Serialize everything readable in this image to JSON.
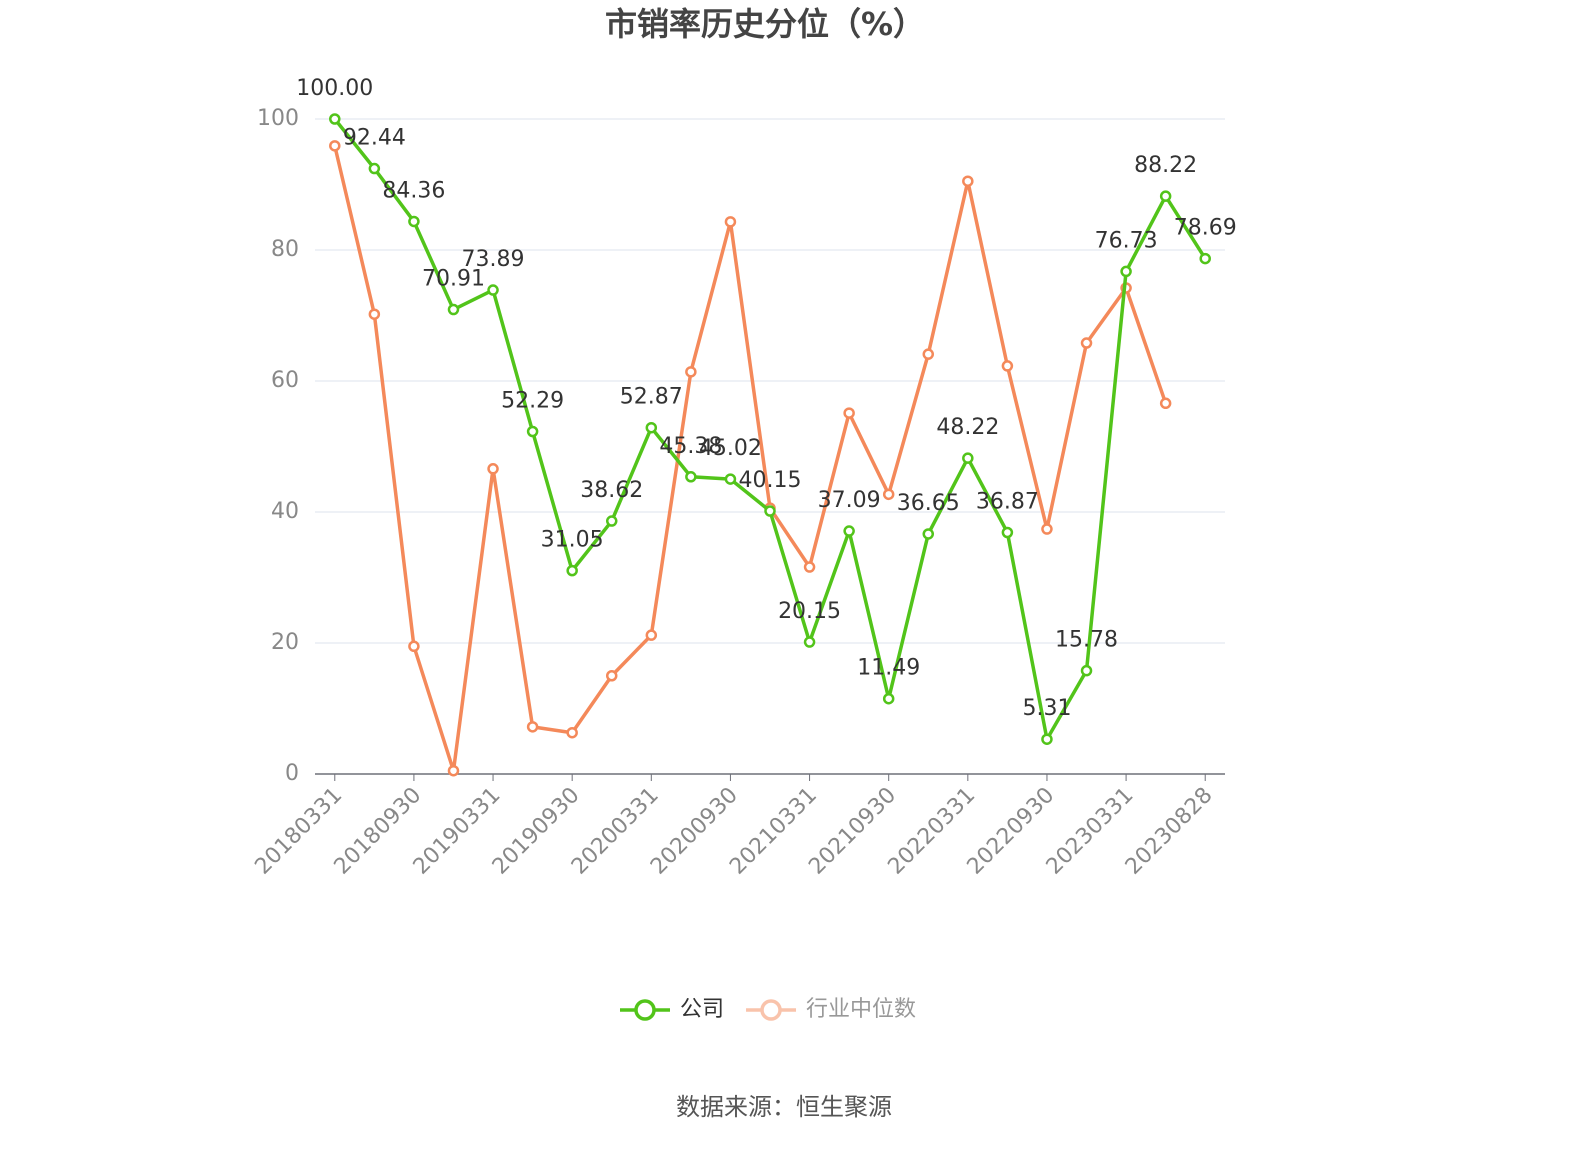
{
  "chart_data": {
    "type": "line",
    "title": "市销率历史分位（%）",
    "categories": [
      "20180331",
      null,
      "20180930",
      null,
      "20190331",
      null,
      "20190930",
      null,
      "20200331",
      null,
      "20200930",
      null,
      "20210331",
      null,
      "20210930",
      null,
      "20220331",
      null,
      "20220930",
      null,
      "20230331",
      null,
      "20230828"
    ],
    "series": [
      {
        "name": "公司",
        "color": "#52c41a",
        "values": [
          100,
          92.44,
          84.36,
          70.91,
          73.89,
          52.29,
          31.05,
          38.62,
          52.87,
          45.38,
          45.02,
          40.15,
          20.15,
          37.09,
          11.49,
          36.65,
          48.22,
          36.87,
          5.31,
          15.78,
          76.73,
          88.22,
          78.69
        ],
        "value_labels": [
          "100.00",
          "92.44",
          "84.36",
          "70.91",
          "73.89",
          "52.29",
          "31.05",
          "38.62",
          "52.87",
          "45.38",
          "45.02",
          "40.15",
          "20.15",
          "37.09",
          "11.49",
          "36.65",
          "48.22",
          "36.87",
          "5.31",
          "15.78",
          "76.73",
          "88.22",
          "78.69"
        ]
      },
      {
        "name": "行业中位数",
        "color": "#f4895a",
        "values": [
          95.9,
          70.2,
          19.5,
          0.5,
          46.6,
          7.2,
          6.3,
          15.0,
          21.2,
          61.4,
          84.3,
          40.6,
          31.6,
          55.1,
          42.7,
          64.1,
          90.5,
          62.3,
          37.4,
          65.8,
          74.2,
          56.6,
          null
        ]
      }
    ],
    "ylim": [
      0,
      100
    ],
    "yticks": [
      0,
      20,
      40,
      60,
      80,
      100
    ],
    "grid": true,
    "source": "数据来源：恒生聚源"
  }
}
